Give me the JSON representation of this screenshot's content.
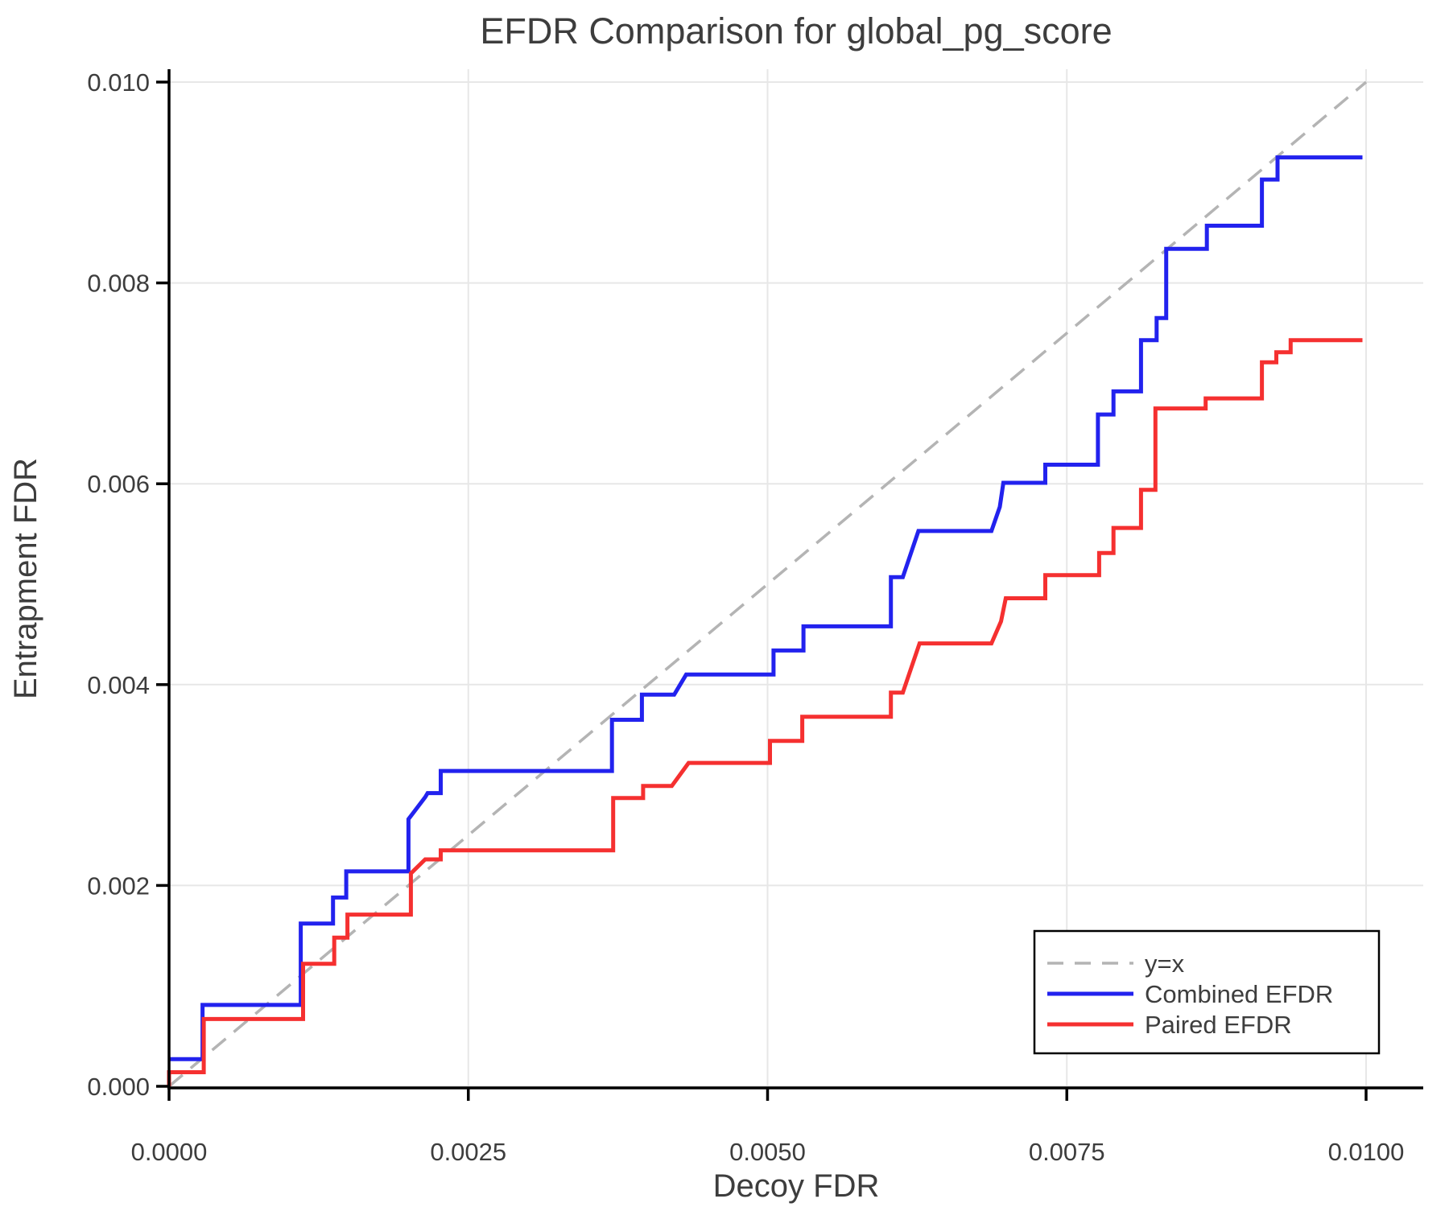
{
  "chart_data": {
    "type": "line",
    "title": "EFDR Comparison for global_pg_score",
    "xlabel": "Decoy FDR",
    "ylabel": "Entrapment FDR",
    "xlim": [
      0.0,
      0.0105
    ],
    "ylim": [
      0.0,
      0.0101
    ],
    "grid": true,
    "legend_position": "lower right",
    "xticks": {
      "values": [
        0.0,
        0.0025,
        0.005,
        0.0075,
        0.01
      ],
      "labels": [
        "0.0000",
        "0.0025",
        "0.0050",
        "0.0075",
        "0.0100"
      ]
    },
    "yticks": {
      "values": [
        0.0,
        0.002,
        0.004,
        0.006,
        0.008,
        0.01
      ],
      "labels": [
        "0.000",
        "0.002",
        "0.004",
        "0.006",
        "0.008",
        "0.010"
      ]
    },
    "series": [
      {
        "name": "y=x",
        "style": "dashed",
        "color": "#b4b4b4",
        "width": 3.5,
        "points": [
          [
            0.0,
            0.0
          ],
          [
            0.01,
            0.01
          ]
        ]
      },
      {
        "name": "Combined EFDR",
        "style": "solid",
        "color": "#2222ee",
        "width": 5,
        "points": [
          [
            0.0,
            0.00027
          ],
          [
            0.00028,
            0.00027
          ],
          [
            0.00028,
            0.00081
          ],
          [
            0.0011,
            0.00081
          ],
          [
            0.0011,
            0.00162
          ],
          [
            0.00137,
            0.00162
          ],
          [
            0.00137,
            0.00188
          ],
          [
            0.00148,
            0.00188
          ],
          [
            0.00148,
            0.00214
          ],
          [
            0.002,
            0.00214
          ],
          [
            0.002,
            0.00266
          ],
          [
            0.00214,
            0.00288
          ],
          [
            0.00216,
            0.00292
          ],
          [
            0.00227,
            0.00292
          ],
          [
            0.00227,
            0.00314
          ],
          [
            0.0037,
            0.00314
          ],
          [
            0.0037,
            0.00365
          ],
          [
            0.00395,
            0.00365
          ],
          [
            0.00395,
            0.0039
          ],
          [
            0.00422,
            0.0039
          ],
          [
            0.00432,
            0.0041
          ],
          [
            0.00505,
            0.0041
          ],
          [
            0.00505,
            0.00434
          ],
          [
            0.0053,
            0.00434
          ],
          [
            0.0053,
            0.00458
          ],
          [
            0.00603,
            0.00458
          ],
          [
            0.00603,
            0.00507
          ],
          [
            0.00613,
            0.00507
          ],
          [
            0.00626,
            0.00553
          ],
          [
            0.00687,
            0.00553
          ],
          [
            0.00694,
            0.00577
          ],
          [
            0.00697,
            0.00601
          ],
          [
            0.00732,
            0.00601
          ],
          [
            0.00732,
            0.00619
          ],
          [
            0.00776,
            0.00619
          ],
          [
            0.00776,
            0.00669
          ],
          [
            0.00789,
            0.00669
          ],
          [
            0.00789,
            0.00692
          ],
          [
            0.00812,
            0.00692
          ],
          [
            0.00812,
            0.00743
          ],
          [
            0.00825,
            0.00743
          ],
          [
            0.00825,
            0.00765
          ],
          [
            0.00833,
            0.00765
          ],
          [
            0.00833,
            0.00834
          ],
          [
            0.00867,
            0.00834
          ],
          [
            0.00867,
            0.00857
          ],
          [
            0.00913,
            0.00857
          ],
          [
            0.00913,
            0.00903
          ],
          [
            0.00926,
            0.00903
          ],
          [
            0.00926,
            0.00925
          ],
          [
            0.00997,
            0.00925
          ]
        ]
      },
      {
        "name": "Paired EFDR",
        "style": "solid",
        "color": "#f53030",
        "width": 5,
        "points": [
          [
            0.0,
            0.0
          ],
          [
            0.0,
            0.00014
          ],
          [
            0.00029,
            0.00014
          ],
          [
            0.00029,
            0.00067
          ],
          [
            0.00112,
            0.00067
          ],
          [
            0.00112,
            0.00122
          ],
          [
            0.00138,
            0.00122
          ],
          [
            0.00138,
            0.00148
          ],
          [
            0.00149,
            0.00148
          ],
          [
            0.00149,
            0.00171
          ],
          [
            0.00202,
            0.00171
          ],
          [
            0.00202,
            0.00212
          ],
          [
            0.00214,
            0.00226
          ],
          [
            0.00227,
            0.00226
          ],
          [
            0.00227,
            0.00235
          ],
          [
            0.00371,
            0.00235
          ],
          [
            0.00371,
            0.00287
          ],
          [
            0.00396,
            0.00287
          ],
          [
            0.00396,
            0.00299
          ],
          [
            0.0042,
            0.00299
          ],
          [
            0.00434,
            0.00322
          ],
          [
            0.00502,
            0.00322
          ],
          [
            0.00502,
            0.00344
          ],
          [
            0.00529,
            0.00344
          ],
          [
            0.00529,
            0.00368
          ],
          [
            0.00603,
            0.00368
          ],
          [
            0.00603,
            0.00392
          ],
          [
            0.00613,
            0.00392
          ],
          [
            0.00627,
            0.00441
          ],
          [
            0.00687,
            0.00441
          ],
          [
            0.00695,
            0.00463
          ],
          [
            0.00699,
            0.00486
          ],
          [
            0.00732,
            0.00486
          ],
          [
            0.00732,
            0.00509
          ],
          [
            0.00777,
            0.00509
          ],
          [
            0.00777,
            0.00531
          ],
          [
            0.00789,
            0.00531
          ],
          [
            0.00789,
            0.00556
          ],
          [
            0.00812,
            0.00556
          ],
          [
            0.00812,
            0.00594
          ],
          [
            0.00824,
            0.00594
          ],
          [
            0.00824,
            0.00675
          ],
          [
            0.00866,
            0.00675
          ],
          [
            0.00866,
            0.00685
          ],
          [
            0.00913,
            0.00685
          ],
          [
            0.00913,
            0.00721
          ],
          [
            0.00925,
            0.00721
          ],
          [
            0.00925,
            0.00731
          ],
          [
            0.00937,
            0.00731
          ],
          [
            0.00937,
            0.00743
          ],
          [
            0.00997,
            0.00743
          ]
        ]
      }
    ],
    "legend": {
      "entries": [
        {
          "label": "y=x",
          "color": "#b4b4b4",
          "style": "dashed"
        },
        {
          "label": "Combined EFDR",
          "color": "#2222ee",
          "style": "solid"
        },
        {
          "label": "Paired EFDR",
          "color": "#f53030",
          "style": "solid"
        }
      ]
    }
  },
  "colors": {
    "text": "#3d3d3d",
    "spine": "#000000",
    "grid": "#e7e7e7",
    "background": "#ffffff",
    "legend_border": "#000000"
  }
}
